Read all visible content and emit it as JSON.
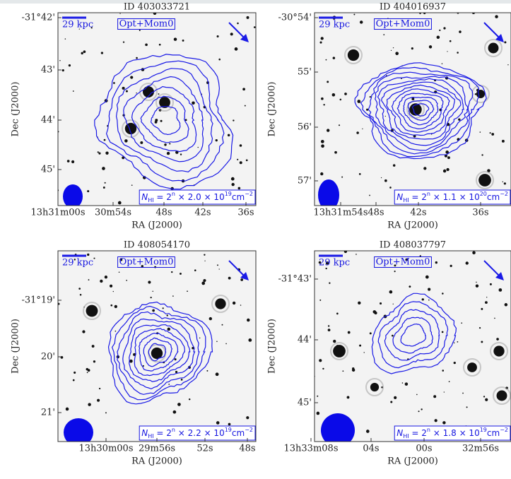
{
  "panels": [
    {
      "title": "ID 403033721",
      "scale": "29 kpc",
      "label": "Opt+Mom0",
      "nhi": [
        "N",
        "HI",
        " = 2",
        "n",
        " × 2.0 × 10",
        "19",
        "cm",
        "−2"
      ],
      "yticks": [
        "-31°42'",
        "43'",
        "44'",
        "45'"
      ],
      "xticks": [
        "13h31m00s",
        "30m54s",
        "48s",
        "42s",
        "36s"
      ],
      "xlabel": "RA (J2000)",
      "ylabel": "Dec (J2000)"
    },
    {
      "title": "ID 404016937",
      "scale": "29 kpc",
      "label": "Opt+Mom0",
      "nhi": [
        "N",
        "HI",
        " = 2",
        "n",
        " × 1.1 × 10",
        "20",
        "cm",
        "−2"
      ],
      "yticks": [
        "-30°54'",
        "55'",
        "56'",
        "57'"
      ],
      "xticks": [
        "13h31m54s",
        "48s",
        "42s",
        "36s"
      ],
      "xlabel": "RA (J2000)",
      "ylabel": "Dec (J2000)"
    },
    {
      "title": "ID 408054170",
      "scale": "29 kpc",
      "label": "Opt+Mom0",
      "nhi": [
        "N",
        "HI",
        " = 2",
        "n",
        " × 2.2 × 10",
        "19",
        "cm",
        "−2"
      ],
      "yticks": [
        "-31°19'",
        "20'",
        "21'"
      ],
      "xticks": [
        "13h30m00s",
        "29m56s",
        "52s",
        "48s"
      ],
      "xlabel": "RA (J2000)",
      "ylabel": "Dec (J2000)"
    },
    {
      "title": "ID 408037797",
      "scale": "29 kpc",
      "label": "Opt+Mom0",
      "nhi": [
        "N",
        "HI",
        " = 2",
        "n",
        " × 1.8 × 10",
        "19",
        "cm",
        "−2"
      ],
      "yticks": [
        "-31°43'",
        "44'",
        "45'"
      ],
      "xticks": [
        "13h33m08s",
        "04s",
        "00s",
        "32m56s"
      ],
      "xlabel": "RA (J2000)",
      "ylabel": "Dec (J2000)"
    }
  ]
}
